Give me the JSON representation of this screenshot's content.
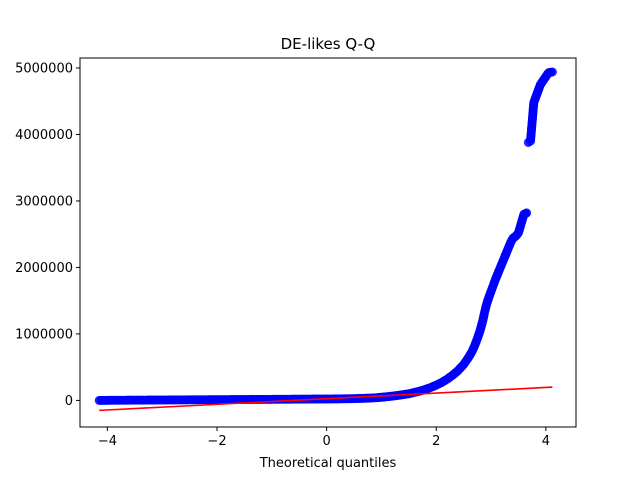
{
  "chart_data": {
    "type": "scatter",
    "title": "DE-likes Q-Q",
    "xlabel": "Theoretical quantiles",
    "ylabel": "",
    "xlim": [
      -4.5,
      4.55
    ],
    "ylim": [
      -400000,
      5150000
    ],
    "xticks": [
      -4,
      -2,
      0,
      2,
      4
    ],
    "xtick_labels": [
      "−4",
      "−2",
      "0",
      "2",
      "4"
    ],
    "yticks": [
      0,
      1000000,
      2000000,
      3000000,
      4000000,
      5000000
    ],
    "ytick_labels": [
      "0",
      "1000000",
      "2000000",
      "3000000",
      "4000000",
      "5000000"
    ],
    "grid": false,
    "series": [
      {
        "kind": "points",
        "color": "#0000ff",
        "x": [
          -4.15,
          -3.9,
          -3.7,
          -3.5,
          -3.3,
          -3.1,
          -2.9,
          -2.7,
          -2.5,
          -2.3,
          -2.1,
          -1.9,
          -1.7,
          -1.5,
          -1.3,
          -1.1,
          -0.9,
          -0.7,
          -0.5,
          -0.3,
          -0.1,
          0.1,
          0.3,
          0.5,
          0.7,
          0.9,
          1.1,
          1.3,
          1.5,
          1.6,
          1.7,
          1.8,
          1.9,
          2.0,
          2.1,
          2.2,
          2.3,
          2.4,
          2.5,
          2.55,
          2.6,
          2.65,
          2.7,
          2.75,
          2.8,
          2.85,
          2.88,
          2.92,
          2.96,
          3.0,
          3.04,
          3.08,
          3.12,
          3.16,
          3.2,
          3.24,
          3.28,
          3.32,
          3.36,
          3.4,
          3.45,
          3.5,
          3.55,
          3.6,
          3.65,
          3.68,
          3.72,
          3.78,
          3.9,
          4.05,
          4.12
        ],
        "y": [
          0,
          2000,
          3000,
          4000,
          5000,
          6000,
          7000,
          8000,
          9000,
          10000,
          11000,
          12000,
          13000,
          14000,
          15000,
          16000,
          17000,
          18000,
          19000,
          20000,
          21000,
          22000,
          24000,
          27000,
          32000,
          40000,
          55000,
          75000,
          100000,
          120000,
          140000,
          165000,
          195000,
          230000,
          270000,
          320000,
          380000,
          450000,
          540000,
          600000,
          660000,
          730000,
          820000,
          930000,
          1050000,
          1200000,
          1320000,
          1450000,
          1550000,
          1640000,
          1730000,
          1820000,
          1900000,
          1980000,
          2060000,
          2140000,
          2220000,
          2300000,
          2380000,
          2440000,
          2470000,
          2520000,
          2660000,
          2800000,
          2820000,
          3880000,
          3900000,
          4480000,
          4750000,
          4930000,
          4940000
        ]
      },
      {
        "kind": "fit-line",
        "color": "#ff0000",
        "x": [
          -4.15,
          4.12
        ],
        "y": [
          -150000,
          200000
        ]
      }
    ]
  }
}
